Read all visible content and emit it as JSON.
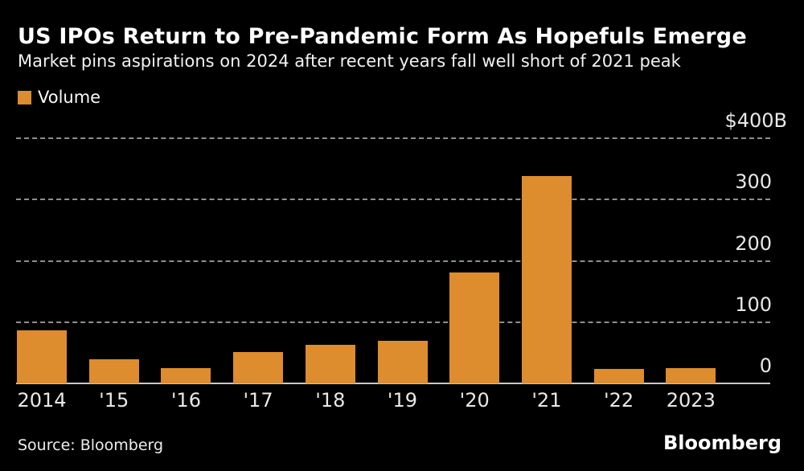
{
  "page": {
    "background": "#000000"
  },
  "header": {
    "title": "US IPOs Return to Pre-Pandemic Form As Hopefuls Emerge",
    "subtitle": "Market pins aspirations on 2024 after recent years fall well short of 2021 peak"
  },
  "legend": {
    "label": "Volume",
    "swatch_color": "#DD8C2E"
  },
  "chart_data": {
    "type": "bar",
    "title": "US IPOs Return to Pre-Pandemic Form As Hopefuls Emerge",
    "subtitle": "Market pins aspirations on 2024 after recent years fall well short of 2021 peak",
    "categories": [
      "2014",
      "'15",
      "'16",
      "'17",
      "'18",
      "'19",
      "'20",
      "'21",
      "'22",
      "2023"
    ],
    "series": [
      {
        "name": "Volume",
        "values": [
          87,
          40,
          25,
          51,
          63,
          70,
          181,
          338,
          23,
          25
        ]
      }
    ],
    "unit": "billions of US dollars",
    "xlabel": "",
    "ylabel": "",
    "ylim": [
      0,
      400
    ],
    "yticks": [
      {
        "value": 400,
        "label": "$400B"
      },
      {
        "value": 300,
        "label": "300"
      },
      {
        "value": 200,
        "label": "200"
      },
      {
        "value": 100,
        "label": "100"
      },
      {
        "value": 0,
        "label": "0"
      }
    ],
    "grid": "horizontal-dashed",
    "legend_position": "top-left",
    "bar_color": "#DD8C2E"
  },
  "footer": {
    "source": "Source: Bloomberg",
    "brand": "Bloomberg"
  },
  "colors": {
    "background": "#000000",
    "title": "#FFFFFF",
    "subtitle": "#F2F2F2",
    "tick_labels": "#E8E8E8",
    "gridline": "#8F8F8F",
    "baseline": "#C9C9C9",
    "bar": "#DD8C2E"
  }
}
